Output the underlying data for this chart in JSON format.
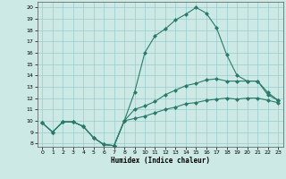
{
  "xlabel": "Humidex (Indice chaleur)",
  "bg_color": "#cce9e5",
  "grid_color": "#99cccc",
  "line_color": "#2a7a6a",
  "xlim": [
    -0.5,
    23.5
  ],
  "ylim": [
    7.7,
    20.5
  ],
  "xticks": [
    0,
    1,
    2,
    3,
    4,
    5,
    6,
    7,
    8,
    9,
    10,
    11,
    12,
    13,
    14,
    15,
    16,
    17,
    18,
    19,
    20,
    21,
    22,
    23
  ],
  "yticks": [
    8,
    9,
    10,
    11,
    12,
    13,
    14,
    15,
    16,
    17,
    18,
    19,
    20
  ],
  "line1_x": [
    0,
    1,
    2,
    3,
    4,
    5,
    6,
    7,
    8,
    9,
    10,
    11,
    12,
    13,
    14,
    15,
    16,
    17,
    18,
    19,
    20,
    21,
    22,
    23
  ],
  "line1_y": [
    9.8,
    9.0,
    9.9,
    9.9,
    9.5,
    8.5,
    7.9,
    7.8,
    10.0,
    12.5,
    16.0,
    17.5,
    18.1,
    18.9,
    19.4,
    20.0,
    19.5,
    18.2,
    15.8,
    14.0,
    13.5,
    13.5,
    12.3,
    11.8
  ],
  "line2_x": [
    0,
    1,
    2,
    3,
    4,
    5,
    6,
    7,
    8,
    9,
    10,
    11,
    12,
    13,
    14,
    15,
    16,
    17,
    18,
    19,
    20,
    21,
    22,
    23
  ],
  "line2_y": [
    9.8,
    9.0,
    9.9,
    9.9,
    9.5,
    8.5,
    7.9,
    7.8,
    10.0,
    11.0,
    11.3,
    11.7,
    12.3,
    12.7,
    13.1,
    13.3,
    13.6,
    13.7,
    13.5,
    13.5,
    13.5,
    13.5,
    12.5,
    11.8
  ],
  "line3_x": [
    0,
    1,
    2,
    3,
    4,
    5,
    6,
    7,
    8,
    9,
    10,
    11,
    12,
    13,
    14,
    15,
    16,
    17,
    18,
    19,
    20,
    21,
    22,
    23
  ],
  "line3_y": [
    9.8,
    9.0,
    9.9,
    9.9,
    9.5,
    8.5,
    7.9,
    7.8,
    10.0,
    10.2,
    10.4,
    10.7,
    11.0,
    11.2,
    11.5,
    11.6,
    11.8,
    11.9,
    12.0,
    11.9,
    12.0,
    12.0,
    11.8,
    11.6
  ]
}
